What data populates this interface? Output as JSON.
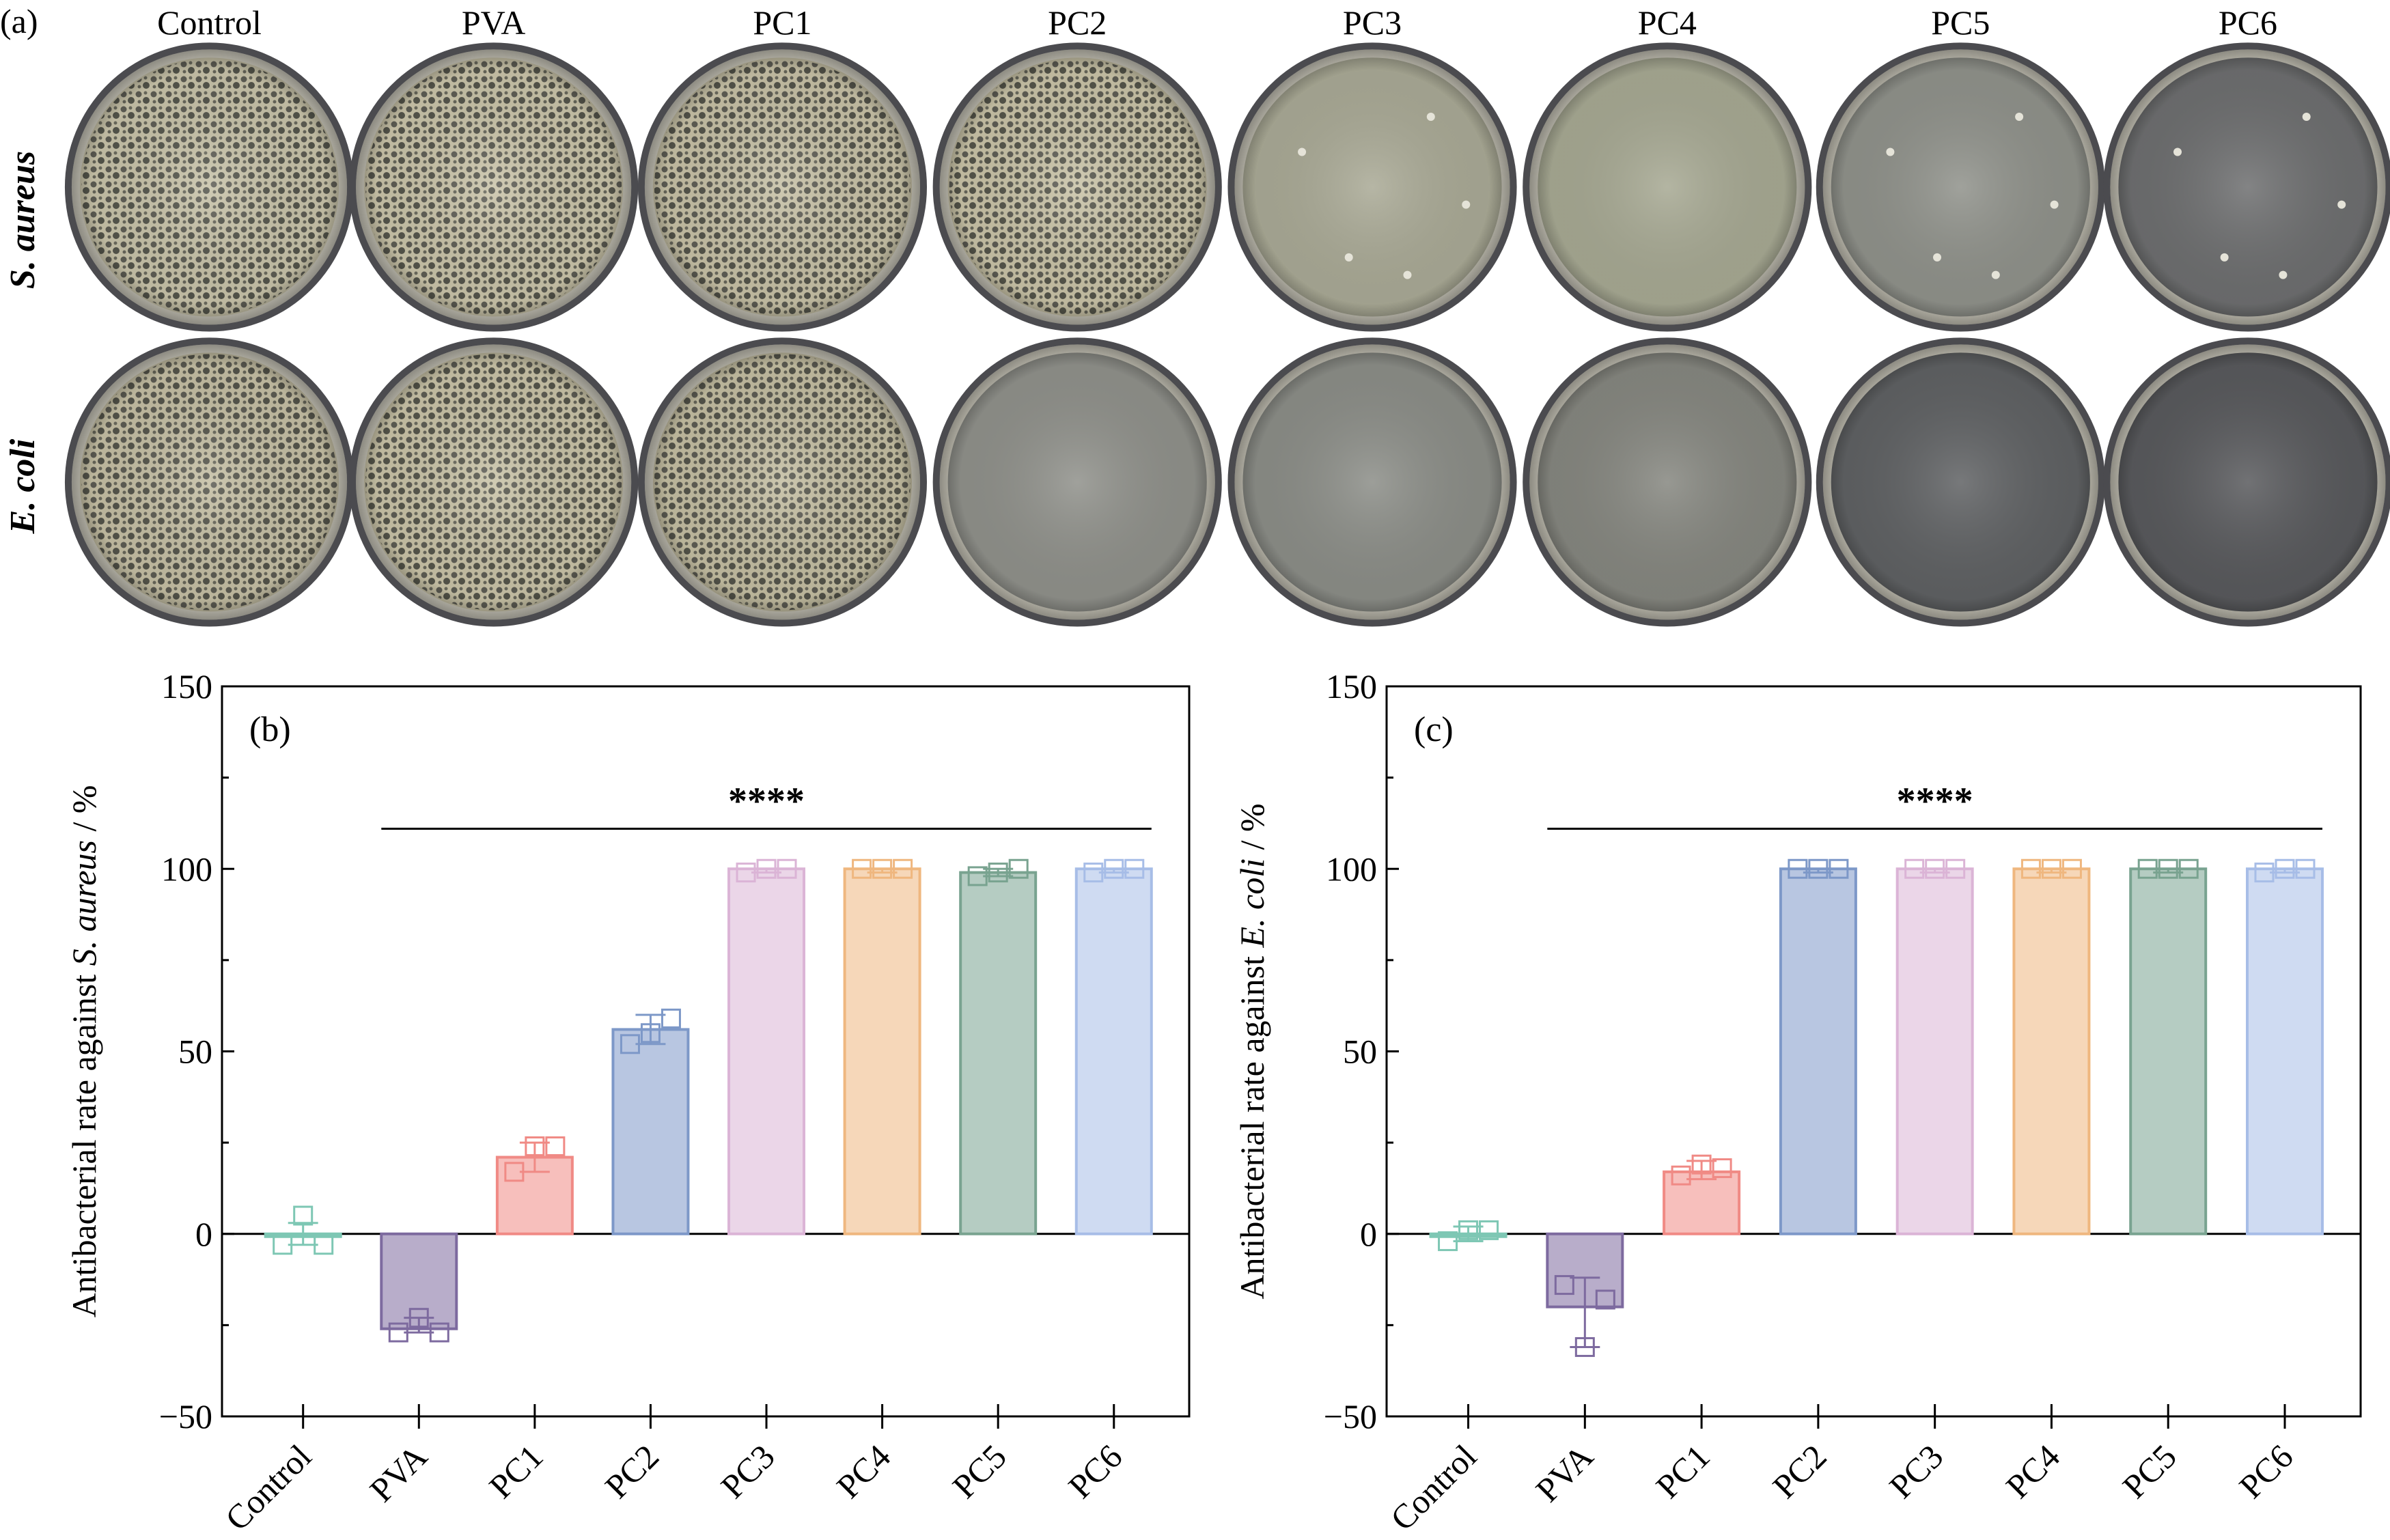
{
  "panel_a": {
    "label": "(a)",
    "columns": [
      "Control",
      "PVA",
      "PC1",
      "PC2",
      "PC3",
      "PC4",
      "PC5",
      "PC6"
    ],
    "rows": [
      {
        "label": "S. aureus",
        "colonies": [
          "dense",
          "dense",
          "dense",
          "dense",
          "sparse",
          "none",
          "sparse",
          "sparse"
        ]
      },
      {
        "label": "E. coli",
        "colonies": [
          "dense",
          "dense",
          "dense",
          "none",
          "none",
          "none",
          "none",
          "none"
        ]
      }
    ],
    "dish_tints": [
      "#c7c2a8",
      "#c9c3a8",
      "#c6c0a5",
      "#c8c2a6",
      "#a9a995",
      "#a6a892",
      "#8f918a",
      "#6d6e6f"
    ],
    "dish_tints_row2": [
      "#c4bea3",
      "#c8c2a6",
      "#c3bda1",
      "#8f908a",
      "#8b8d87",
      "#85867f",
      "#5f6163",
      "#58595c"
    ]
  },
  "chart_data": [
    {
      "type": "bar",
      "panel_label": "(b)",
      "categories": [
        "Control",
        "PVA",
        "PC1",
        "PC2",
        "PC3",
        "PC4",
        "PC5",
        "PC6"
      ],
      "values": [
        0,
        -26,
        21,
        56,
        100,
        100,
        99,
        100
      ],
      "error_high": [
        3,
        -23,
        25,
        60,
        100,
        100,
        100,
        100
      ],
      "error_low": [
        -3,
        -27,
        17,
        52,
        99,
        99,
        98,
        99
      ],
      "replicates": [
        [
          -3,
          5,
          -3
        ],
        [
          -27,
          -23,
          -27
        ],
        [
          17,
          24,
          24
        ],
        [
          52,
          55,
          59
        ],
        [
          99,
          100,
          100
        ],
        [
          100,
          100,
          100
        ],
        [
          98,
          99,
          100
        ],
        [
          99,
          100,
          100
        ]
      ],
      "ylabel": "Antibacterial rate against ",
      "ylabel_italic": "S. aureus",
      "ylabel_suffix": " / %",
      "ylim": [
        -50,
        150
      ],
      "yticks": [
        "-50",
        "0",
        "50",
        "100",
        "150"
      ],
      "significance": "****",
      "significance_span": [
        "PVA",
        "PC6"
      ],
      "colors": [
        "#7ec7b4",
        "#7d6a9f",
        "#f08a85",
        "#7d98c8",
        "#dbb4d6",
        "#efb77f",
        "#79a390",
        "#a7bde7"
      ]
    },
    {
      "type": "bar",
      "panel_label": "(c)",
      "categories": [
        "Control",
        "PVA",
        "PC1",
        "PC2",
        "PC3",
        "PC4",
        "PC5",
        "PC6"
      ],
      "values": [
        0,
        -20,
        17,
        100,
        100,
        100,
        100,
        100
      ],
      "error_high": [
        2,
        -12,
        20,
        100,
        100,
        100,
        100,
        100
      ],
      "error_low": [
        -2,
        -31,
        15,
        99,
        99,
        99,
        99,
        99
      ],
      "replicates": [
        [
          -2,
          1,
          1
        ],
        [
          -14,
          -31,
          -18
        ],
        [
          16,
          19,
          18
        ],
        [
          100,
          100,
          100
        ],
        [
          100,
          100,
          100
        ],
        [
          100,
          100,
          100
        ],
        [
          100,
          100,
          100
        ],
        [
          99,
          100,
          100
        ]
      ],
      "ylabel": "Antibacterial rate against ",
      "ylabel_italic": "E. coli",
      "ylabel_suffix": " / %",
      "ylim": [
        -50,
        150
      ],
      "yticks": [
        "-50",
        "0",
        "50",
        "100",
        "150"
      ],
      "significance": "****",
      "significance_span": [
        "PVA",
        "PC6"
      ],
      "colors": [
        "#7ec7b4",
        "#7d6a9f",
        "#f08a85",
        "#7d98c8",
        "#dbb4d6",
        "#efb77f",
        "#79a390",
        "#a7bde7"
      ]
    }
  ]
}
